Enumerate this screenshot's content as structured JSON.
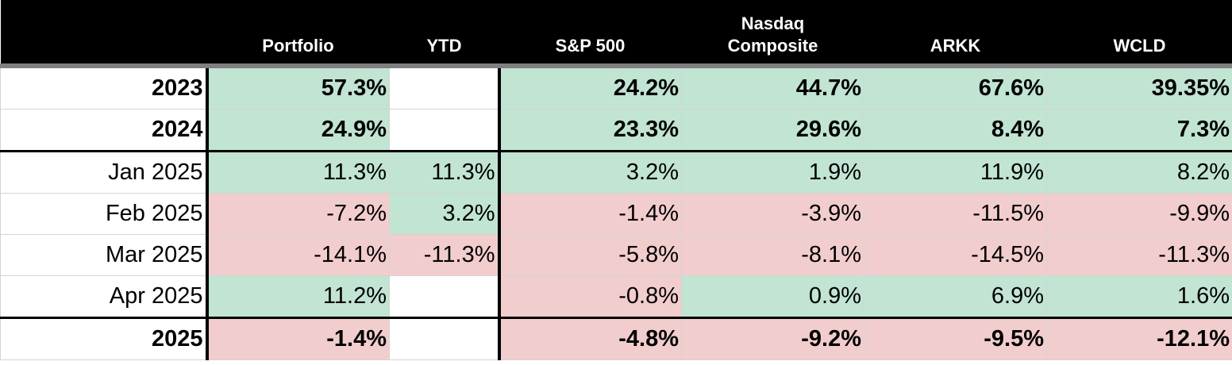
{
  "table": {
    "columns": [
      null,
      "Portfolio",
      "YTD",
      "S&P 500",
      "Nasdaq Composite",
      "ARKK",
      "WCLD"
    ],
    "rows": [
      {
        "label": "2023",
        "bold": true,
        "cells": [
          "57.3%",
          null,
          "24.2%",
          "44.7%",
          "67.6%",
          "39.35%"
        ]
      },
      {
        "label": "2024",
        "bold": true,
        "cells": [
          "24.9%",
          null,
          "23.3%",
          "29.6%",
          "8.4%",
          "7.3%"
        ]
      },
      {
        "label": "Jan 2025",
        "bold": false,
        "cells": [
          "11.3%",
          "11.3%",
          "3.2%",
          "1.9%",
          "11.9%",
          "8.2%"
        ]
      },
      {
        "label": "Feb 2025",
        "bold": false,
        "cells": [
          "-7.2%",
          "3.2%",
          "-1.4%",
          "-3.9%",
          "-11.5%",
          "-9.9%"
        ]
      },
      {
        "label": "Mar 2025",
        "bold": false,
        "cells": [
          "-14.1%",
          "-11.3%",
          "-5.8%",
          "-8.1%",
          "-14.5%",
          "-11.3%"
        ]
      },
      {
        "label": "Apr 2025",
        "bold": false,
        "cells": [
          "11.2%",
          null,
          "-0.8%",
          "0.9%",
          "6.9%",
          "1.6%"
        ]
      },
      {
        "label": "2025",
        "bold": true,
        "cells": [
          "-1.4%",
          null,
          "-4.8%",
          "-9.2%",
          "-9.5%",
          "-12.1%"
        ]
      }
    ],
    "positive_color": "#c1e4d3",
    "negative_color": "#f2cdcd"
  }
}
